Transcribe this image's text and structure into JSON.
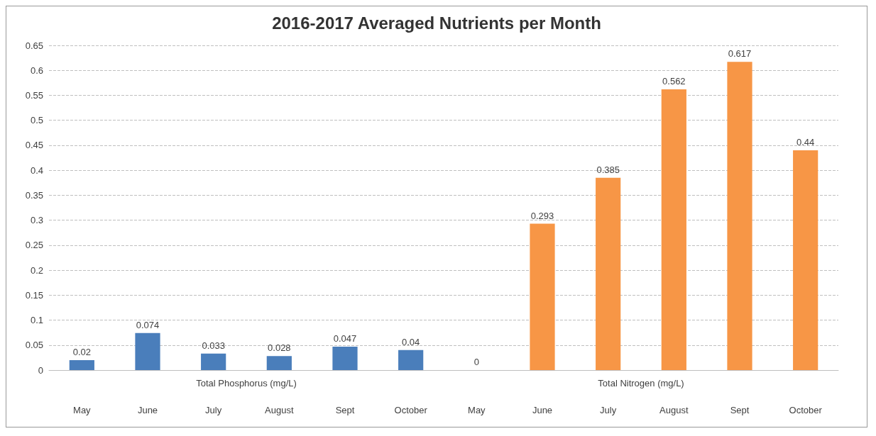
{
  "chart_data": {
    "type": "bar",
    "title": "2016-2017 Averaged Nutrients per Month",
    "categories": [
      "May",
      "June",
      "July",
      "August",
      "Sept",
      "October",
      "May",
      "June",
      "July",
      "August",
      "Sept",
      "October"
    ],
    "series": [
      {
        "name": "Total Phosphorus (mg/L)",
        "color": "#4a7ebb",
        "values": [
          0.02,
          0.074,
          0.033,
          0.028,
          0.047,
          0.04,
          null,
          null,
          null,
          null,
          null,
          null
        ]
      },
      {
        "name": "Total Nitrogen (mg/L)",
        "color": "#f79646",
        "values": [
          null,
          null,
          null,
          null,
          null,
          null,
          0,
          0.293,
          0.385,
          0.562,
          0.617,
          0.44
        ]
      }
    ],
    "ylim": [
      0,
      0.65
    ],
    "yticks": [
      0,
      0.05,
      0.1,
      0.15,
      0.2,
      0.25,
      0.3,
      0.35,
      0.4,
      0.45,
      0.5,
      0.55,
      0.6,
      0.65
    ],
    "grid": "y",
    "data_labels": true,
    "legend": false
  }
}
